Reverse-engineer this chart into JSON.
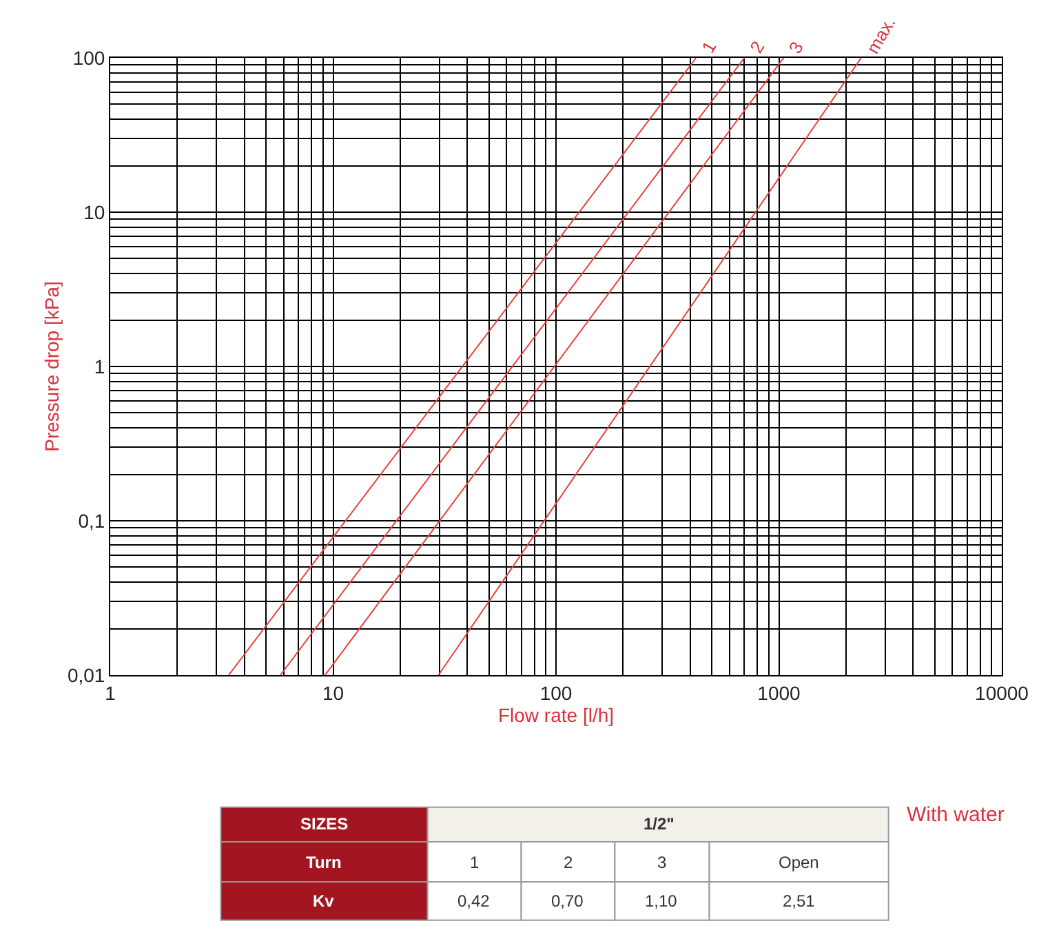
{
  "chart_data": {
    "type": "line",
    "xlabel": "Flow rate [l/h]",
    "ylabel": "Pressure drop [kPa]",
    "log": "xy",
    "grid": true,
    "marker": "none",
    "line_style": "solid",
    "xlim": [
      1,
      10000
    ],
    "xticks": [
      1,
      10,
      100,
      1000,
      10000
    ],
    "ylim": [
      0.01,
      100
    ],
    "yticks": [
      {
        "value": 0.01,
        "label": "0,01"
      },
      {
        "value": 0.1,
        "label": "0,1"
      },
      1,
      10,
      100
    ],
    "series": [
      {
        "color": "#e8413c",
        "x": [
          3.4,
          425
        ],
        "values": [
          0.01,
          100
        ]
      },
      {
        "color": "#e8413c",
        "x": [
          5.8,
          700
        ],
        "values": [
          0.01,
          100
        ]
      },
      {
        "color": "#e8413c",
        "x": [
          9.2,
          1050
        ],
        "values": [
          0.01,
          100
        ]
      },
      {
        "color": "#e8413c",
        "x": [
          29.7,
          2340
        ],
        "values": [
          0.01,
          100
        ]
      }
    ],
    "annotations": [
      {
        "text": "1",
        "x": 425,
        "y": 100
      },
      {
        "text": "2",
        "x": 700,
        "y": 100
      },
      {
        "text": "3",
        "x": 1050,
        "y": 100
      },
      {
        "text": "max.",
        "x": 2340,
        "y": 100
      },
      "SIZES",
      "1/2\"",
      "Turn",
      "1",
      "2",
      "3",
      "Open",
      "Kv",
      "0,42",
      "0,70",
      "1,10",
      "2,51",
      "With water"
    ]
  }
}
